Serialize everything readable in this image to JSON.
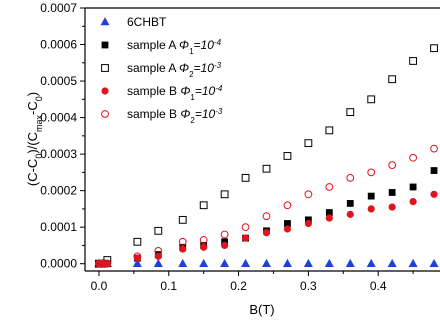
{
  "chart_data": {
    "type": "scatter",
    "xlabel": "B(T)",
    "ylabel": "(C-C0)/(Cmax-C0)",
    "xlim": [
      -0.02,
      0.5
    ],
    "ylim": [
      -2e-05,
      0.0007
    ],
    "x_ticks": [
      0.0,
      0.1,
      0.2,
      0.3,
      0.4,
      0.5
    ],
    "x_tick_labels": [
      "0.0",
      "0.1",
      "0.2",
      "0.3",
      "0.4",
      "0.5"
    ],
    "y_ticks": [
      0.0,
      0.0001,
      0.0002,
      0.0003,
      0.0004,
      0.0005,
      0.0006,
      0.0007
    ],
    "y_tick_labels": [
      "0.0000",
      "0.0001",
      "0.0002",
      "0.0003",
      "0.0004",
      "0.0005",
      "0.0006",
      "0.0007"
    ],
    "legend_position": "top-left",
    "series": [
      {
        "name": "6CHBT",
        "marker": "triangle-filled",
        "color": "#1f3fe0",
        "x": [
          0.0,
          0.005,
          0.012,
          0.055,
          0.085,
          0.12,
          0.15,
          0.18,
          0.21,
          0.24,
          0.27,
          0.3,
          0.33,
          0.36,
          0.39,
          0.42,
          0.45,
          0.48
        ],
        "y": [
          0.0,
          0.0,
          0.0,
          0.0,
          0.0,
          0.0,
          0.0,
          0.0,
          0.0,
          0.0,
          0.0,
          0.0,
          0.0,
          0.0,
          0.0,
          0.0,
          0.0,
          0.0
        ]
      },
      {
        "name": "sample A",
        "phi_symbol": "Φ",
        "phi_sub": "1",
        "phi_value": "=10",
        "phi_exp": "-4",
        "marker": "square-filled",
        "color": "#000000",
        "x": [
          0.0,
          0.005,
          0.012,
          0.055,
          0.085,
          0.12,
          0.15,
          0.18,
          0.21,
          0.24,
          0.27,
          0.3,
          0.33,
          0.36,
          0.39,
          0.42,
          0.45,
          0.48
        ],
        "y": [
          0.0,
          0.0,
          0.0,
          1.5e-05,
          2.5e-05,
          4.5e-05,
          5e-05,
          6e-05,
          7e-05,
          9e-05,
          0.00011,
          0.00012,
          0.00014,
          0.000165,
          0.000185,
          0.000195,
          0.00021,
          0.000255
        ]
      },
      {
        "name": "sample A",
        "phi_symbol": "Φ",
        "phi_sub": "2",
        "phi_value": "=10",
        "phi_exp": "-3",
        "marker": "square-open",
        "color": "#000000",
        "x": [
          0.0,
          0.005,
          0.012,
          0.055,
          0.085,
          0.12,
          0.15,
          0.18,
          0.21,
          0.24,
          0.27,
          0.3,
          0.33,
          0.36,
          0.39,
          0.42,
          0.45,
          0.48
        ],
        "y": [
          0.0,
          0.0,
          1e-05,
          6e-05,
          9e-05,
          0.00012,
          0.00016,
          0.00019,
          0.000235,
          0.00026,
          0.000295,
          0.00033,
          0.000365,
          0.000415,
          0.00045,
          0.000505,
          0.000555,
          0.00059
        ]
      },
      {
        "name": "sample B",
        "phi_symbol": "Φ",
        "phi_sub": "1",
        "phi_value": "=10",
        "phi_exp": "-4",
        "marker": "circle-filled",
        "color": "#e0141e",
        "x": [
          0.0,
          0.005,
          0.012,
          0.055,
          0.085,
          0.12,
          0.15,
          0.18,
          0.21,
          0.24,
          0.27,
          0.3,
          0.33,
          0.36,
          0.39,
          0.42,
          0.45,
          0.48
        ],
        "y": [
          0.0,
          0.0,
          0.0,
          1.5e-05,
          2e-05,
          4e-05,
          4.5e-05,
          5e-05,
          7e-05,
          8.5e-05,
          9.5e-05,
          0.00011,
          0.000125,
          0.000135,
          0.00015,
          0.000155,
          0.00017,
          0.00019
        ]
      },
      {
        "name": "sample B",
        "phi_symbol": "Φ",
        "phi_sub": "2",
        "phi_value": "=10",
        "phi_exp": "-3",
        "marker": "circle-open",
        "color": "#e0141e",
        "x": [
          0.0,
          0.005,
          0.012,
          0.055,
          0.085,
          0.12,
          0.15,
          0.18,
          0.21,
          0.24,
          0.27,
          0.3,
          0.33,
          0.36,
          0.39,
          0.42,
          0.45,
          0.48
        ],
        "y": [
          0.0,
          0.0,
          0.0,
          2e-05,
          3.5e-05,
          6e-05,
          6.5e-05,
          8e-05,
          0.0001,
          0.00013,
          0.00016,
          0.00019,
          0.00021,
          0.000235,
          0.00025,
          0.00027,
          0.00029,
          0.000315
        ]
      }
    ]
  }
}
